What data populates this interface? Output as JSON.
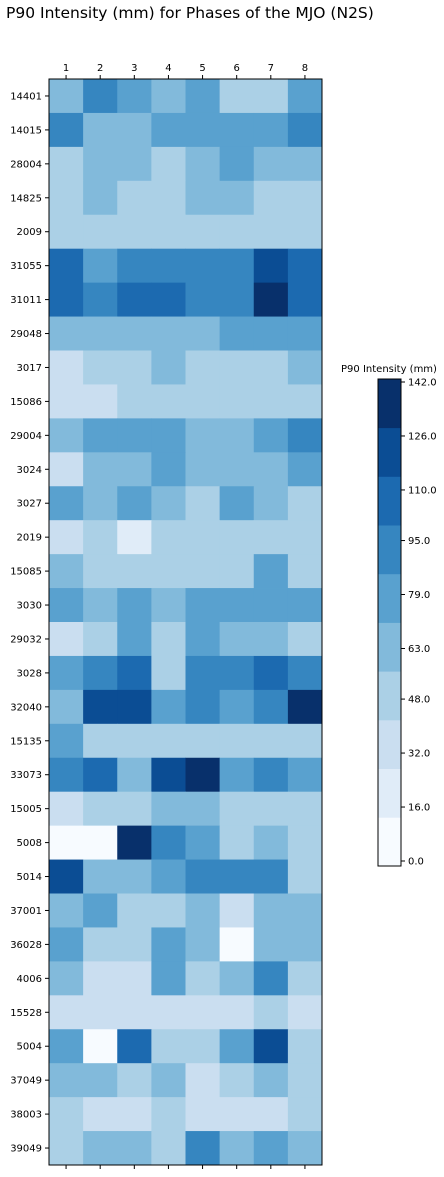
{
  "chart_data": {
    "type": "heatmap",
    "title": "P90 Intensity (mm) for Phases of the MJO (N2S)",
    "x_categories": [
      "1",
      "2",
      "3",
      "4",
      "5",
      "6",
      "7",
      "8"
    ],
    "y_categories": [
      "14401",
      "14015",
      "28004",
      "14825",
      "2009",
      "31055",
      "31011",
      "29048",
      "3017",
      "15086",
      "29004",
      "3024",
      "3027",
      "2019",
      "15085",
      "3030",
      "29032",
      "3028",
      "32040",
      "15135",
      "33073",
      "15005",
      "5008",
      "5014",
      "37001",
      "36028",
      "4006",
      "15528",
      "5004",
      "37049",
      "38003",
      "39049"
    ],
    "values": [
      [
        63,
        95,
        79,
        63,
        79,
        55,
        55,
        79
      ],
      [
        95,
        63,
        63,
        79,
        79,
        79,
        79,
        95
      ],
      [
        48,
        63,
        63,
        48,
        63,
        79,
        63,
        63
      ],
      [
        48,
        63,
        48,
        48,
        63,
        63,
        48,
        48
      ],
      [
        48,
        48,
        48,
        48,
        48,
        48,
        48,
        48
      ],
      [
        110,
        79,
        95,
        95,
        95,
        95,
        126,
        110
      ],
      [
        110,
        95,
        110,
        110,
        95,
        95,
        142,
        110
      ],
      [
        63,
        63,
        63,
        63,
        63,
        79,
        79,
        79
      ],
      [
        32,
        48,
        48,
        63,
        48,
        48,
        48,
        63
      ],
      [
        32,
        32,
        48,
        48,
        48,
        48,
        48,
        48
      ],
      [
        63,
        79,
        79,
        79,
        63,
        63,
        79,
        95
      ],
      [
        32,
        63,
        63,
        79,
        63,
        63,
        63,
        79
      ],
      [
        79,
        63,
        79,
        63,
        48,
        79,
        63,
        48
      ],
      [
        32,
        48,
        20,
        48,
        48,
        48,
        48,
        48
      ],
      [
        63,
        48,
        48,
        48,
        48,
        48,
        79,
        48
      ],
      [
        79,
        63,
        79,
        63,
        79,
        79,
        79,
        79
      ],
      [
        32,
        48,
        79,
        48,
        79,
        63,
        63,
        48
      ],
      [
        79,
        95,
        110,
        48,
        95,
        95,
        110,
        95
      ],
      [
        63,
        126,
        126,
        79,
        95,
        79,
        95,
        142
      ],
      [
        79,
        48,
        48,
        48,
        48,
        48,
        48,
        48
      ],
      [
        95,
        110,
        63,
        126,
        142,
        79,
        95,
        79
      ],
      [
        32,
        48,
        48,
        63,
        63,
        48,
        48,
        48
      ],
      [
        0,
        0,
        142,
        95,
        79,
        48,
        63,
        48
      ],
      [
        126,
        63,
        63,
        79,
        95,
        95,
        95,
        48
      ],
      [
        63,
        79,
        48,
        48,
        63,
        32,
        63,
        63
      ],
      [
        79,
        48,
        48,
        79,
        63,
        0,
        63,
        63
      ],
      [
        63,
        32,
        32,
        79,
        48,
        63,
        95,
        48
      ],
      [
        32,
        32,
        32,
        32,
        32,
        32,
        48,
        32
      ],
      [
        79,
        0,
        110,
        48,
        48,
        79,
        126,
        48
      ],
      [
        63,
        63,
        48,
        63,
        32,
        48,
        63,
        48
      ],
      [
        48,
        32,
        32,
        48,
        32,
        32,
        32,
        48
      ],
      [
        48,
        63,
        63,
        48,
        95,
        63,
        79,
        63
      ]
    ],
    "colorbar": {
      "label": "P90 Intensity (mm)",
      "ticks": [
        "0.0",
        "16.0",
        "32.0",
        "48.0",
        "63.0",
        "79.0",
        "95.0",
        "110.0",
        "126.0",
        "142.0"
      ],
      "colors": [
        "#f7fbff",
        "#e0ecf8",
        "#cadef0",
        "#abd0e6",
        "#82badb",
        "#59a1cf",
        "#3686c0",
        "#1c6ab0",
        "#0b4d94",
        "#08306b"
      ],
      "range": [
        0,
        142
      ]
    },
    "colormap": "Blues",
    "grid": false
  }
}
